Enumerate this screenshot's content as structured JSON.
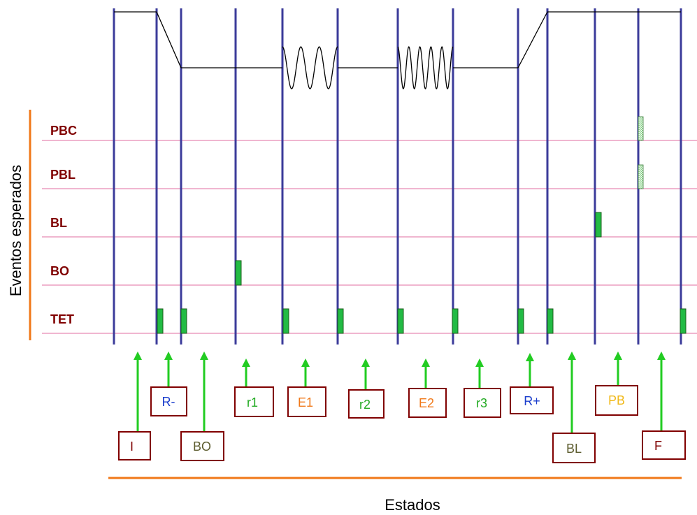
{
  "y_axis_label": "Eventos esperados",
  "x_axis_label": "Estados",
  "colors": {
    "row_label": "#800000",
    "row_line": "#e88ab4",
    "divider": "#3b3b9a",
    "marker_fill": "#22bb44",
    "marker_edge": "#1a5c1a",
    "hatched_marker": "#bde8bd",
    "arrow": "#22cc22",
    "state_box_border": "#800000",
    "orange_rule": "#f07818",
    "signal": "#000000"
  },
  "event_rows": [
    {
      "label": "PBC"
    },
    {
      "label": "PBL"
    },
    {
      "label": "BL"
    },
    {
      "label": "BO"
    },
    {
      "label": "TET"
    }
  ],
  "states": [
    {
      "label": "I",
      "color": "#800000"
    },
    {
      "label": "R-",
      "color": "#1a3dcc"
    },
    {
      "label": "BO",
      "color": "#5c5c2e"
    },
    {
      "label": "r1",
      "color": "#22aa22"
    },
    {
      "label": "E1",
      "color": "#f07818"
    },
    {
      "label": "r2",
      "color": "#22aa22"
    },
    {
      "label": "E2",
      "color": "#f07818"
    },
    {
      "label": "r3",
      "color": "#22aa22"
    },
    {
      "label": "R+",
      "color": "#1a3dcc"
    },
    {
      "label": "BL",
      "color": "#5c5c2e"
    },
    {
      "label": "PB",
      "color": "#f0b818"
    },
    {
      "label": "F",
      "color": "#800000"
    }
  ]
}
